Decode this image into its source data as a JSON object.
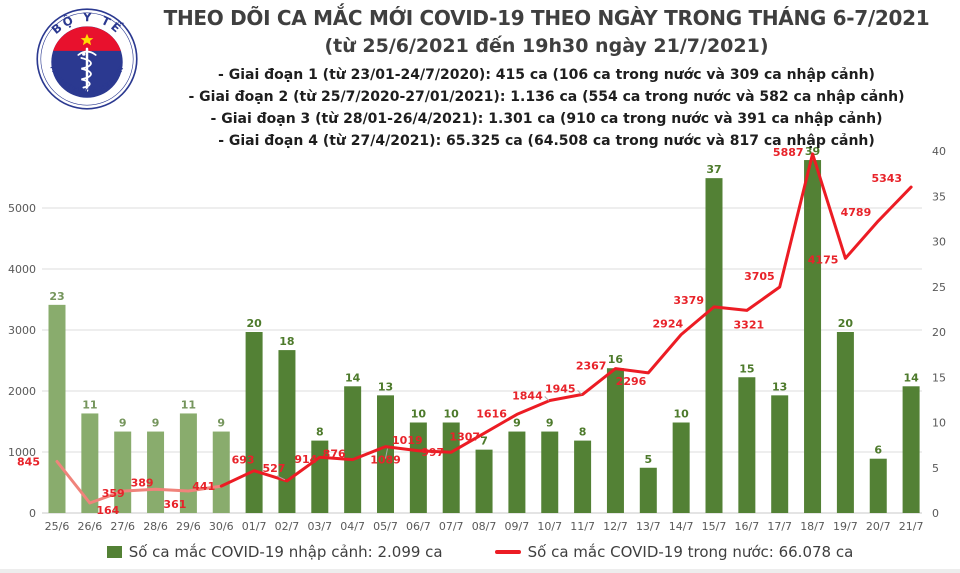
{
  "header": {
    "title_line1": "THEO DÕI CA MẮC MỚI COVID-19 THEO NGÀY TRONG THÁNG 6-7/2021",
    "title_line2": "(từ 25/6/2021 đến 19h30 ngày 21/7/2021)",
    "periods": [
      "- Giai đoạn 1 (từ 23/01-24/7/2020): 415 ca (106 ca trong nước và 309 ca nhập cảnh)",
      "- Giai đoạn 2 (từ 25/7/2020-27/01/2021): 1.136 ca (554 ca trong nước và 582 ca nhập cảnh)",
      "- Giai đoạn 3 (từ 28/01-26/4/2021): 1.301 ca (910 ca trong nước và 391 ca nhập cảnh)",
      "- Giai đoạn 4 (từ 27/4/2021): 65.325 ca (64.508 ca trong nước và 817 ca nhập cảnh)"
    ],
    "logo": {
      "top_text": "BỘ Y TẾ",
      "bottom_text": "MINISTRY OF HEALTH"
    }
  },
  "chart_data": {
    "type": "combo-bar-line",
    "title": "THEO DÕI CA MẮC MỚI COVID-19 THEO NGÀY TRONG THÁNG 6-7/2021",
    "subtitle": "(từ 25/6/2021 đến 19h30 ngày 21/7/2021)",
    "categories": [
      "25/6",
      "26/6",
      "27/6",
      "28/6",
      "29/6",
      "30/6",
      "01/7",
      "02/7",
      "03/7",
      "04/7",
      "05/7",
      "06/7",
      "07/7",
      "08/7",
      "09/7",
      "10/7",
      "11/7",
      "12/7",
      "13/7",
      "14/7",
      "15/7",
      "16/7",
      "17/7",
      "18/7",
      "19/7",
      "20/7",
      "21/7"
    ],
    "series": [
      {
        "name": "Số ca mắc COVID-19 nhập cảnh",
        "type": "bar",
        "axis": "right",
        "values": [
          23,
          11,
          9,
          9,
          11,
          9,
          20,
          18,
          8,
          14,
          13,
          10,
          10,
          7,
          9,
          9,
          8,
          16,
          5,
          10,
          37,
          15,
          13,
          39,
          20,
          6,
          14
        ]
      },
      {
        "name": "Số ca mắc COVID-19 trong nước",
        "type": "line",
        "axis": "left",
        "values": [
          845,
          164,
          359,
          389,
          361,
          441,
          693,
          527,
          914,
          876,
          1089,
          1019,
          997,
          1307,
          1616,
          1844,
          1945,
          2367,
          2296,
          2924,
          3379,
          3321,
          3705,
          5887,
          4175,
          4789,
          5343
        ]
      }
    ],
    "left_axis": {
      "ticks": [
        0,
        1000,
        2000,
        3000,
        4000,
        5000
      ],
      "max": 6000
    },
    "right_axis": {
      "ticks": [
        0,
        5,
        10,
        15,
        20,
        25,
        30,
        35,
        40
      ],
      "max": 40
    },
    "grid": "horizontal",
    "legend_position": "bottom",
    "colors": {
      "bar_dark": "#538135",
      "bar_light": "#89AC6D",
      "bar_label_dark": "#4D7A2B",
      "bar_label_light": "#75955C",
      "line": "#EC1C24",
      "line_faded": "#F0837B",
      "label_red": "#E8232A",
      "grid": "#DCDCDC",
      "axis_line": "#C8C8C8",
      "axis_text": "#595959",
      "leader": "#ABABAB"
    }
  },
  "legend": {
    "bar_label": "Số ca mắc COVID-19 nhập cảnh: 2.099 ca",
    "line_label": "Số ca mắc COVID-19 trong nước: 66.078 ca"
  }
}
